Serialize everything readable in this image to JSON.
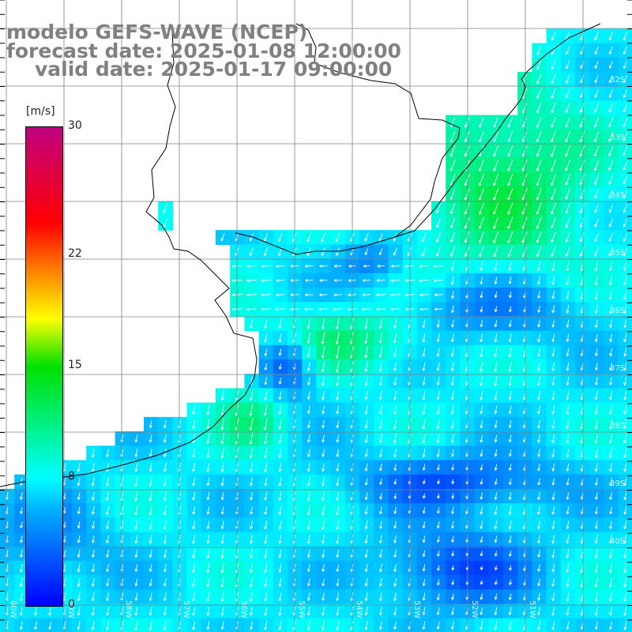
{
  "title": {
    "model": "modelo GEFS-WAVE (NCEP)",
    "forecast": "forecast date: 2025-01-08 12:00:00",
    "valid": "valid date: 2025-01-17 09:00:00"
  },
  "colorbar": {
    "unit": "[m/s]",
    "ticks": [
      "30",
      "22",
      "15",
      "8",
      "0"
    ],
    "tick_values": [
      30,
      22,
      15,
      8,
      0
    ],
    "min": 0,
    "max": 30,
    "stops": [
      {
        "v": 0,
        "color": "#0000ff"
      },
      {
        "v": 6,
        "color": "#00b0ff"
      },
      {
        "v": 8,
        "color": "#00ffff"
      },
      {
        "v": 15,
        "color": "#00e000"
      },
      {
        "v": 18,
        "color": "#ffff00"
      },
      {
        "v": 21,
        "color": "#ff8000"
      },
      {
        "v": 24,
        "color": "#ff0000"
      },
      {
        "v": 30,
        "color": "#c00080"
      }
    ]
  },
  "lat_labels": [
    "32S",
    "33S",
    "34S",
    "35S",
    "36S",
    "37S",
    "38S",
    "39S",
    "40S"
  ],
  "lon_labels": [
    "60W",
    "59W",
    "58W",
    "57W",
    "56W",
    "55W",
    "54W",
    "53W",
    "52W",
    "51W"
  ],
  "colors": {
    "land": "#ffffff",
    "coast": "#000000",
    "grid": "#808080",
    "arrows": "#ffffff"
  }
}
